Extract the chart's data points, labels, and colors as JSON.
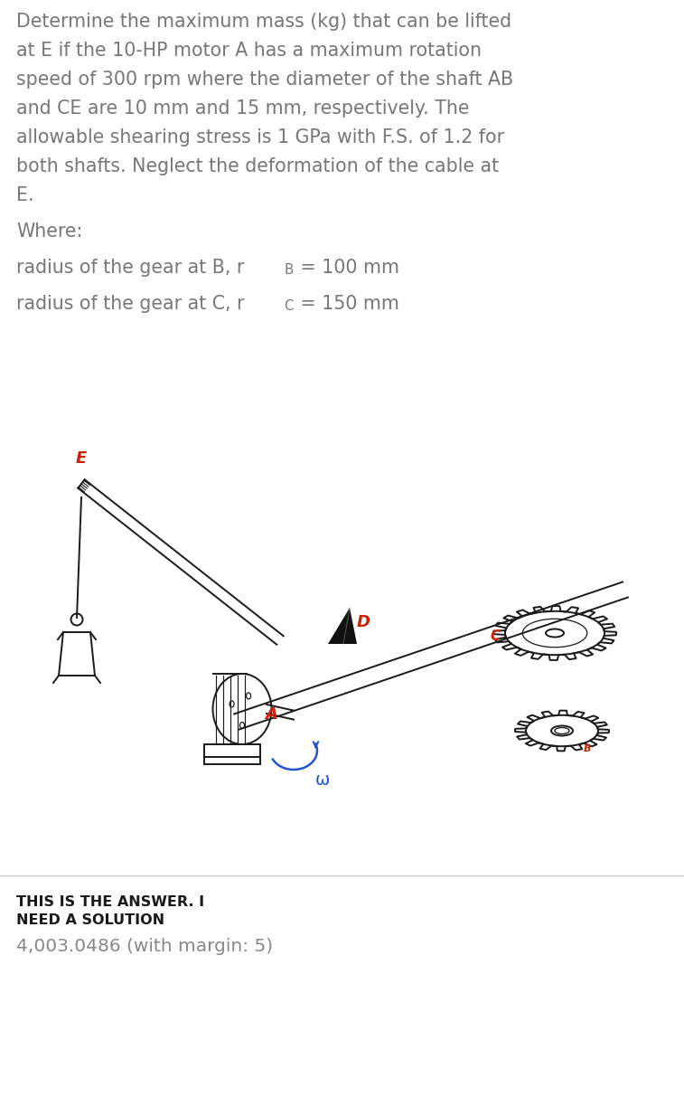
{
  "problem_text_lines": [
    "Determine the maximum mass (kg) that can be lifted",
    "at E if the 10-HP motor A has a maximum rotation",
    "speed of 300 rpm where the diameter of the shaft AB",
    "and CE are 10 mm and 15 mm, respectively. The",
    "allowable shearing stress is 1 GPa with F.S. of 1.2 for",
    "both shafts. Neglect the deformation of the cable at",
    "E."
  ],
  "where_text": "Where:",
  "gear_b_main": "radius of the gear at B, r",
  "gear_b_sub": "B",
  "gear_b_val": " = 100 mm",
  "gear_c_main": "radius of the gear at C, r",
  "gear_c_sub": "C",
  "gear_c_val": " = 150 mm",
  "answer_bold_line1": "THIS IS THE ANSWER. I",
  "answer_bold_line2": "NEED A SOLUTION",
  "answer_value": "4,003.0486 (with margin: 5)",
  "bg_color": "#ffffff",
  "text_color": "#777777",
  "bold_color": "#1a1a1a",
  "answer_value_color": "#888888",
  "red_color": "#cc2200",
  "blue_color": "#2255cc",
  "draw_color": "#1a1a1a",
  "title_fontsize": 14.8,
  "body_fontsize": 14.8,
  "answer_bold_fontsize": 11.5,
  "answer_value_fontsize": 14.5,
  "fig_width": 7.57,
  "fig_height": 12.34
}
